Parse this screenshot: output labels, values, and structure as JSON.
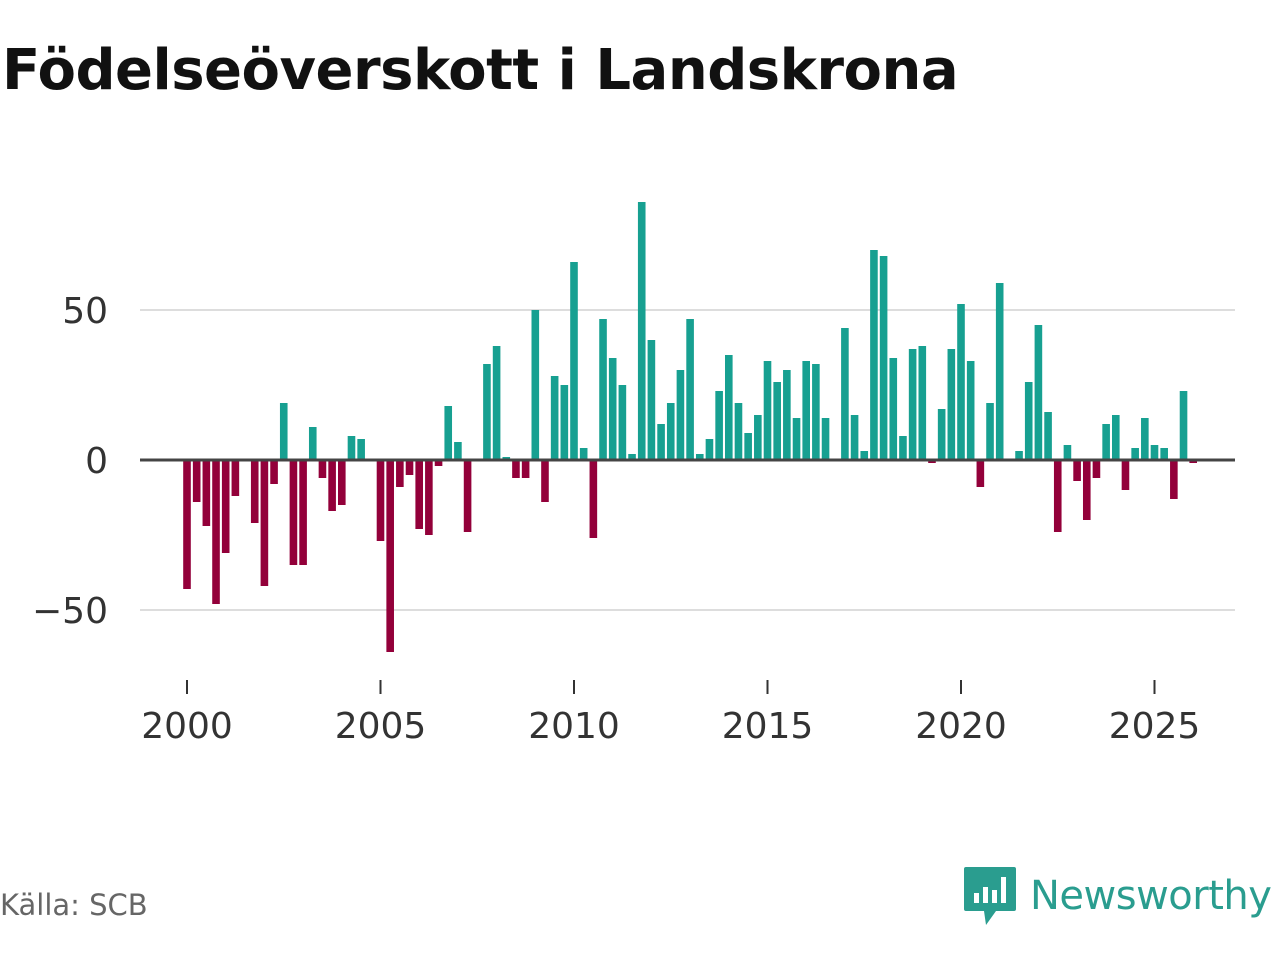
{
  "title": "Födelseöverskott i Landskrona",
  "source": "Källa: SCB",
  "brand": "Newsworthy",
  "colors": {
    "positive": "#17a091",
    "negative": "#93003a",
    "brand": "#2a9d8f",
    "grid": "#dddddd",
    "zero_line": "#444444"
  },
  "chart_data": {
    "type": "bar",
    "title": "Födelseöverskott i Landskrona",
    "xlabel": "",
    "ylabel": "",
    "frequency": "monthly",
    "x_start": 2000.0,
    "x_step": 0.25,
    "xlim": [
      1998.6,
      2027.1
    ],
    "ylim": [
      -72,
      90
    ],
    "y_ticks": [
      -50,
      0,
      50
    ],
    "y_tick_labels": [
      "−50",
      "0",
      "50"
    ],
    "x_ticks": [
      2000,
      2005,
      2010,
      2015,
      2020,
      2025
    ],
    "x_tick_labels": [
      "2000",
      "2005",
      "2010",
      "2015",
      "2020",
      "2025"
    ],
    "values": [
      -43,
      -14,
      -22,
      -48,
      -31,
      -12,
      0,
      -21,
      -42,
      -8,
      19,
      -35,
      -35,
      11,
      -6,
      -17,
      -15,
      8,
      7,
      0,
      -27,
      -64,
      -9,
      -5,
      -23,
      -25,
      -2,
      18,
      6,
      -24,
      0,
      32,
      38,
      1,
      -6,
      -6,
      50,
      -14,
      28,
      25,
      66,
      4,
      -26,
      47,
      34,
      25,
      2,
      86,
      40,
      12,
      19,
      30,
      47,
      2,
      7,
      23,
      35,
      19,
      9,
      15,
      33,
      26,
      30,
      14,
      33,
      32,
      14,
      0,
      44,
      15,
      3,
      70,
      68,
      34,
      8,
      37,
      38,
      -1,
      17,
      37,
      52,
      33,
      -9,
      19,
      59,
      0,
      3,
      26,
      45,
      16,
      -24,
      5,
      -7,
      -20,
      -6,
      12,
      15,
      -10,
      4,
      14,
      5,
      4,
      -13,
      23,
      -1
    ]
  }
}
